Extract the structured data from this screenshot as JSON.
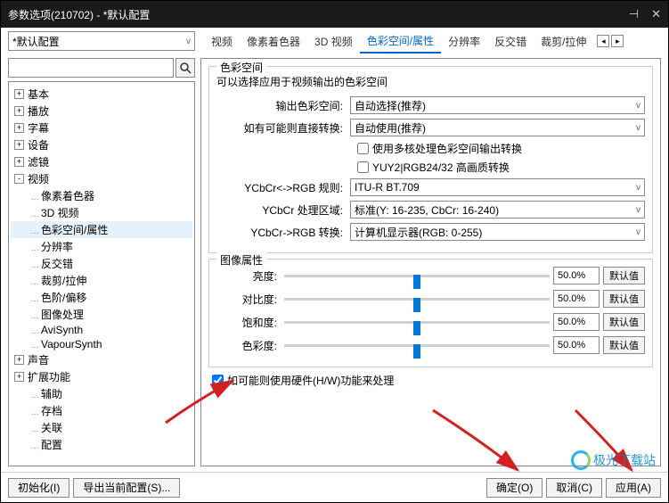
{
  "window": {
    "title": "参数选项(210702) - *默认配置"
  },
  "profile": {
    "selected": "*默认配置"
  },
  "tabs": {
    "items": [
      "视频",
      "像素着色器",
      "3D 视频",
      "色彩空间/属性",
      "分辨率",
      "反交错",
      "裁剪/拉伸"
    ],
    "active_index": 3
  },
  "tree": {
    "items": [
      {
        "label": "基本",
        "level": 0,
        "toggle": "+"
      },
      {
        "label": "播放",
        "level": 0,
        "toggle": "+"
      },
      {
        "label": "字幕",
        "level": 0,
        "toggle": "+"
      },
      {
        "label": "设备",
        "level": 0,
        "toggle": "+"
      },
      {
        "label": "滤镜",
        "level": 0,
        "toggle": "+"
      },
      {
        "label": "视频",
        "level": 0,
        "toggle": "-"
      },
      {
        "label": "像素着色器",
        "level": 1
      },
      {
        "label": "3D 视频",
        "level": 1
      },
      {
        "label": "色彩空间/属性",
        "level": 1,
        "active": true
      },
      {
        "label": "分辨率",
        "level": 1
      },
      {
        "label": "反交错",
        "level": 1
      },
      {
        "label": "裁剪/拉伸",
        "level": 1
      },
      {
        "label": "色阶/偏移",
        "level": 1
      },
      {
        "label": "图像处理",
        "level": 1
      },
      {
        "label": "AviSynth",
        "level": 1
      },
      {
        "label": "VapourSynth",
        "level": 1
      },
      {
        "label": "声音",
        "level": 0,
        "toggle": "+"
      },
      {
        "label": "扩展功能",
        "level": 0,
        "toggle": "+"
      },
      {
        "label": "辅助",
        "level": 1
      },
      {
        "label": "存档",
        "level": 1
      },
      {
        "label": "关联",
        "level": 1
      },
      {
        "label": "配置",
        "level": 1
      }
    ]
  },
  "colorspace_group": {
    "title": "色彩空间",
    "desc": "可以选择应用于视频输出的色彩空间",
    "output_label": "输出色彩空间:",
    "output_value": "自动选择(推荐)",
    "direct_label": "如有可能则直接转换:",
    "direct_value": "自动使用(推荐)",
    "cb_multicore": "使用多核处理色彩空间输出转换",
    "cb_yuy2": "YUY2|RGB24/32 高画质转换",
    "ycbcr_rgb_rule_label": "YCbCr<->RGB 规则:",
    "ycbcr_rgb_rule_value": "ITU-R BT.709",
    "ycbcr_range_label": "YCbCr 处理区域:",
    "ycbcr_range_value": "标准(Y: 16-235, CbCr: 16-240)",
    "ycbcr_to_rgb_label": "YCbCr->RGB 转换:",
    "ycbcr_to_rgb_value": "计算机显示器(RGB: 0-255)"
  },
  "image_attr_group": {
    "title": "图像属性",
    "sliders": [
      {
        "label": "亮度:",
        "value": "50.0%"
      },
      {
        "label": "对比度:",
        "value": "50.0%"
      },
      {
        "label": "饱和度:",
        "value": "50.0%"
      },
      {
        "label": "色彩度:",
        "value": "50.0%"
      }
    ],
    "default_btn": "默认值"
  },
  "hw_checkbox": "如可能则使用硬件(H/W)功能来处理",
  "footer": {
    "init": "初始化(I)",
    "export": "导出当前配置(S)...",
    "ok": "确定(O)",
    "cancel": "取消(C)",
    "apply": "应用(A)"
  },
  "watermark": "极光下载站",
  "colors": {
    "titlebar_bg": "#1a1a1a",
    "accent": "#0078d7",
    "arrow": "#d42020"
  }
}
